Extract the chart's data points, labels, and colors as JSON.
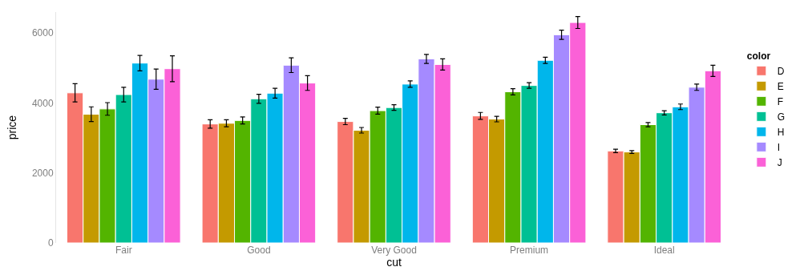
{
  "chart_data": {
    "type": "bar",
    "xlabel": "cut",
    "ylabel": "price",
    "legend_title": "color",
    "legend": "right",
    "categories": [
      "Fair",
      "Good",
      "Very Good",
      "Premium",
      "Ideal"
    ],
    "ylim": [
      0,
      6600
    ],
    "yticks": [
      0,
      2000,
      4000,
      6000
    ],
    "series": [
      {
        "name": "D",
        "color": "#f8766d",
        "values": [
          4290,
          3400,
          3470,
          3630,
          2630
        ],
        "errors": [
          260,
          120,
          90,
          100,
          50
        ]
      },
      {
        "name": "E",
        "color": "#c49a00",
        "values": [
          3680,
          3420,
          3220,
          3540,
          2600
        ],
        "errors": [
          210,
          100,
          80,
          80,
          40
        ]
      },
      {
        "name": "F",
        "color": "#53b400",
        "values": [
          3830,
          3500,
          3780,
          4320,
          3380
        ],
        "errors": [
          180,
          100,
          100,
          90,
          60
        ]
      },
      {
        "name": "G",
        "color": "#00c094",
        "values": [
          4240,
          4120,
          3870,
          4500,
          3720
        ],
        "errors": [
          210,
          130,
          80,
          80,
          60
        ]
      },
      {
        "name": "H",
        "color": "#00b6eb",
        "values": [
          5140,
          4280,
          4540,
          5220,
          3890
        ],
        "errors": [
          220,
          140,
          90,
          90,
          80
        ]
      },
      {
        "name": "I",
        "color": "#a58aff",
        "values": [
          4680,
          5080,
          5260,
          5950,
          4450
        ],
        "errors": [
          290,
          210,
          130,
          130,
          90
        ]
      },
      {
        "name": "J",
        "color": "#fb61d7",
        "values": [
          4980,
          4570,
          5100,
          6300,
          4920
        ],
        "errors": [
          370,
          210,
          160,
          170,
          160
        ]
      }
    ]
  }
}
